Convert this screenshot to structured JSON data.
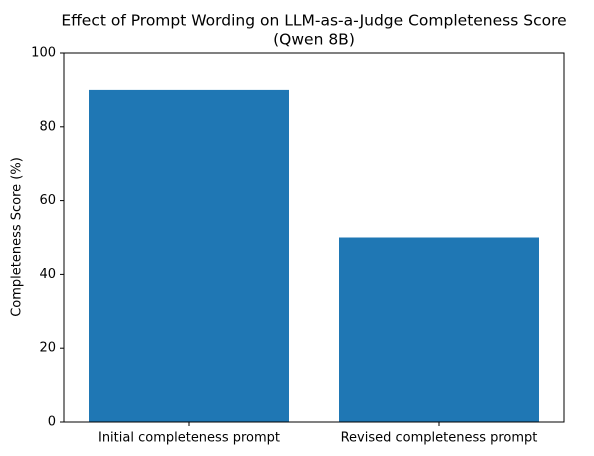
{
  "chart_data": {
    "type": "bar",
    "title": [
      "Effect of Prompt Wording on LLM-as-a-Judge Completeness Score",
      "(Qwen 8B)"
    ],
    "ylabel": "Completeness Score (%)",
    "categories": [
      "Initial completeness prompt",
      "Revised completeness prompt"
    ],
    "values": [
      90,
      50
    ],
    "color": "#1f77b4",
    "ylim": [
      0,
      100
    ],
    "yticks": [
      0,
      20,
      40,
      60,
      80,
      100
    ],
    "grid": false
  }
}
